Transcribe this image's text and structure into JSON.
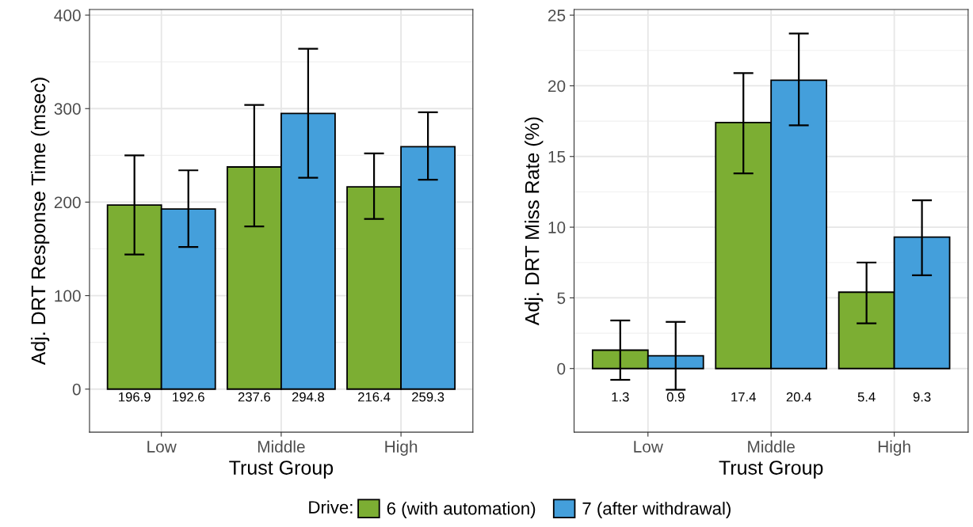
{
  "chart_data": [
    {
      "type": "bar",
      "categories": [
        "Low",
        "Middle",
        "High"
      ],
      "xlabel": "Trust Group",
      "ylabel": "Adj. DRT Response Time (msec)",
      "ylim": [
        -46,
        406
      ],
      "yticks": [
        0,
        100,
        200,
        300,
        400
      ],
      "grid": true,
      "legend": "bottom",
      "legend_title": "Drive:",
      "data_labels": true,
      "series": [
        {
          "name": "6 (with automation)",
          "color": "#7cae33",
          "values": [
            196.9,
            237.6,
            216.4
          ],
          "errors": [
            [
              144,
              250
            ],
            [
              174,
              304
            ],
            [
              182,
              252
            ]
          ]
        },
        {
          "name": "7 (after withdrawal)",
          "color": "#449fdb",
          "values": [
            192.6,
            294.8,
            259.3
          ],
          "errors": [
            [
              152,
              234
            ],
            [
              226,
              364
            ],
            [
              224,
              296
            ]
          ]
        }
      ]
    },
    {
      "type": "bar",
      "categories": [
        "Low",
        "Middle",
        "High"
      ],
      "xlabel": "Trust Group",
      "ylabel": "Adj. DRT Miss Rate (%)",
      "ylim": [
        -4.5,
        25.4
      ],
      "yticks": [
        0,
        5,
        10,
        15,
        20,
        25
      ],
      "grid": true,
      "legend": "bottom",
      "data_labels": true,
      "series": [
        {
          "name": "6 (with automation)",
          "color": "#7cae33",
          "values": [
            1.3,
            17.4,
            5.4
          ],
          "errors": [
            [
              -0.8,
              3.4
            ],
            [
              13.8,
              20.9
            ],
            [
              3.2,
              7.5
            ]
          ]
        },
        {
          "name": "7 (after withdrawal)",
          "color": "#449fdb",
          "values": [
            0.9,
            20.4,
            9.3
          ],
          "errors": [
            [
              -1.5,
              3.3
            ],
            [
              17.2,
              23.7
            ],
            [
              6.6,
              11.9
            ]
          ]
        }
      ]
    }
  ]
}
